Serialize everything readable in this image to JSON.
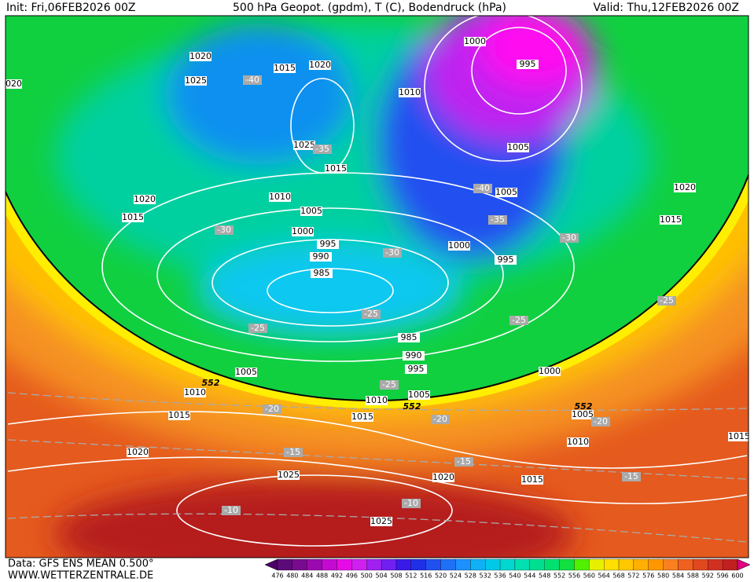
{
  "header": {
    "init": "Init: Fri,06FEB2026 00Z",
    "title": "500 hPa Geopot. (gpdm), T (C), Bodendruck (hPa)",
    "valid": "Valid: Thu,12FEB2026 00Z"
  },
  "pressure_labels": [
    1020,
    1025,
    1015,
    1020,
    1010,
    1000,
    995,
    1025,
    1015,
    1005,
    1005,
    1010,
    1005,
    1020,
    1015,
    1000,
    995,
    990,
    985,
    1000,
    995,
    1020,
    1015,
    985,
    990,
    995,
    1000,
    1005,
    1010,
    1015,
    1010,
    1005,
    1015,
    1005,
    1010,
    1020,
    1025,
    1020,
    1015,
    1025,
    1015,
    1020
  ],
  "temperature_labels": [
    -40,
    -35,
    -40,
    -35,
    -30,
    -30,
    -30,
    -25,
    -25,
    -25,
    -25,
    -25,
    -20,
    -20,
    -20,
    -15,
    -15,
    -15,
    -10,
    -10
  ],
  "contour_labels": [
    552,
    552,
    552
  ],
  "footer": {
    "data": "Data: GFS ENS MEAN 0.500°",
    "website": "WWW.WETTERZENTRALE.DE"
  },
  "colorbar": {
    "labels": [
      476,
      480,
      484,
      488,
      492,
      496,
      500,
      504,
      508,
      512,
      516,
      520,
      524,
      528,
      532,
      536,
      540,
      544,
      548,
      552,
      556,
      560,
      564,
      568,
      572,
      576,
      580,
      584,
      588,
      592,
      596,
      600
    ],
    "colors": [
      "#4b0066",
      "#5c0a7a",
      "#7a0a8e",
      "#9b0ab0",
      "#c40ad0",
      "#e60ae6",
      "#d020f0",
      "#a020f0",
      "#7020f0",
      "#3a1ae8",
      "#2030e6",
      "#2050f0",
      "#2070f5",
      "#1e90ff",
      "#10b0f5",
      "#00c8e8",
      "#00d8d0",
      "#00e0b0",
      "#00e090",
      "#00e070",
      "#10e040",
      "#50f000",
      "#e8f000",
      "#ffe000",
      "#ffc800",
      "#ffb000",
      "#ff9800",
      "#f88020",
      "#f06020",
      "#e04820",
      "#d03020",
      "#c02020",
      "#b01818",
      "#e00080"
    ]
  }
}
